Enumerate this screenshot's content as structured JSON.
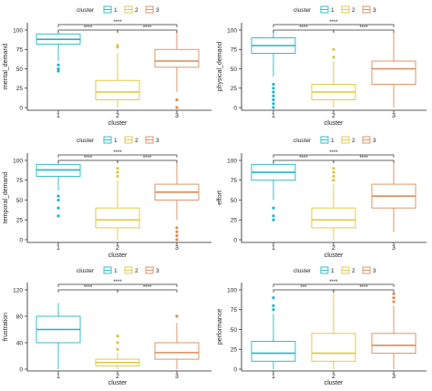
{
  "palette": {
    "c1": "#22b5c4",
    "c2": "#e0c53a",
    "c3": "#d98b5a"
  },
  "chart_data": [
    {
      "type": "box",
      "ylabel": "mental_demand",
      "xlabel": "cluster",
      "categories": [
        "1",
        "2",
        "3"
      ],
      "ylim": [
        0,
        100
      ],
      "yticks": [
        0,
        25,
        50,
        75,
        100
      ],
      "legend": {
        "title": "cluster",
        "entries": [
          "1",
          "2",
          "3"
        ],
        "position": "top"
      },
      "boxes": [
        {
          "min": 60,
          "q1": 82,
          "median": 88,
          "q3": 95,
          "max": 100,
          "outliers": [
            55,
            50,
            47
          ]
        },
        {
          "min": 0,
          "q1": 10,
          "median": 20,
          "q3": 35,
          "max": 70,
          "outliers": [
            80,
            78
          ]
        },
        {
          "min": 20,
          "q1": 52,
          "median": 60,
          "q3": 75,
          "max": 100,
          "outliers": [
            10,
            0
          ]
        }
      ],
      "brackets": [
        {
          "from": 1,
          "to": 2,
          "label": "****"
        },
        {
          "from": 2,
          "to": 3,
          "label": "****"
        },
        {
          "from": 1,
          "to": 3,
          "label": "****"
        }
      ]
    },
    {
      "type": "box",
      "ylabel": "physical_demand",
      "xlabel": "cluster",
      "categories": [
        "1",
        "2",
        "3"
      ],
      "ylim": [
        0,
        100
      ],
      "yticks": [
        0,
        25,
        50,
        75,
        100
      ],
      "legend": {
        "title": "cluster",
        "entries": [
          "1",
          "2",
          "3"
        ],
        "position": "top"
      },
      "boxes": [
        {
          "min": 40,
          "q1": 70,
          "median": 80,
          "q3": 90,
          "max": 100,
          "outliers": [
            30,
            25,
            20,
            15,
            10,
            5,
            0
          ]
        },
        {
          "min": 0,
          "q1": 10,
          "median": 20,
          "q3": 30,
          "max": 60,
          "outliers": [
            65,
            75
          ]
        },
        {
          "min": 0,
          "q1": 30,
          "median": 50,
          "q3": 60,
          "max": 100,
          "outliers": []
        }
      ],
      "brackets": [
        {
          "from": 1,
          "to": 2,
          "label": "****"
        },
        {
          "from": 2,
          "to": 3,
          "label": "****"
        },
        {
          "from": 1,
          "to": 3,
          "label": "****"
        }
      ]
    },
    {
      "type": "box",
      "ylabel": "temporal_demand",
      "xlabel": "cluster",
      "categories": [
        "1",
        "2",
        "3"
      ],
      "ylim": [
        0,
        100
      ],
      "yticks": [
        0,
        25,
        50,
        75,
        100
      ],
      "legend": {
        "title": "cluster",
        "entries": [
          "1",
          "2",
          "3"
        ],
        "position": "top"
      },
      "boxes": [
        {
          "min": 62,
          "q1": 80,
          "median": 88,
          "q3": 95,
          "max": 100,
          "outliers": [
            55,
            50,
            40,
            30
          ]
        },
        {
          "min": 0,
          "q1": 15,
          "median": 25,
          "q3": 40,
          "max": 75,
          "outliers": [
            80,
            85,
            90
          ]
        },
        {
          "min": 25,
          "q1": 50,
          "median": 60,
          "q3": 70,
          "max": 100,
          "outliers": [
            15,
            10,
            5,
            0
          ]
        }
      ],
      "brackets": [
        {
          "from": 1,
          "to": 2,
          "label": "****"
        },
        {
          "from": 2,
          "to": 3,
          "label": "****"
        },
        {
          "from": 1,
          "to": 3,
          "label": "****"
        }
      ]
    },
    {
      "type": "box",
      "ylabel": "effort",
      "xlabel": "cluster",
      "categories": [
        "1",
        "2",
        "3"
      ],
      "ylim": [
        0,
        100
      ],
      "yticks": [
        0,
        25,
        50,
        75,
        100
      ],
      "legend": {
        "title": "cluster",
        "entries": [
          "1",
          "2",
          "3"
        ],
        "position": "top"
      },
      "boxes": [
        {
          "min": 50,
          "q1": 75,
          "median": 85,
          "q3": 95,
          "max": 100,
          "outliers": [
            40,
            30,
            25
          ]
        },
        {
          "min": 0,
          "q1": 15,
          "median": 25,
          "q3": 40,
          "max": 70,
          "outliers": [
            75,
            80,
            85,
            90
          ]
        },
        {
          "min": 10,
          "q1": 40,
          "median": 55,
          "q3": 70,
          "max": 100,
          "outliers": []
        }
      ],
      "brackets": [
        {
          "from": 1,
          "to": 2,
          "label": "****"
        },
        {
          "from": 2,
          "to": 3,
          "label": "****"
        },
        {
          "from": 1,
          "to": 3,
          "label": "****"
        }
      ]
    },
    {
      "type": "box",
      "ylabel": "frustration",
      "xlabel": "cluster",
      "categories": [
        "1",
        "2",
        "3"
      ],
      "ylim": [
        0,
        120
      ],
      "yticks": [
        0,
        40,
        80,
        120
      ],
      "legend": {
        "title": "cluster",
        "entries": [
          "1",
          "2",
          "3"
        ],
        "position": "top"
      },
      "boxes": [
        {
          "min": 0,
          "q1": 40,
          "median": 60,
          "q3": 80,
          "max": 100,
          "outliers": []
        },
        {
          "min": 0,
          "q1": 5,
          "median": 10,
          "q3": 15,
          "max": 25,
          "outliers": [
            30,
            40,
            50
          ]
        },
        {
          "min": 0,
          "q1": 15,
          "median": 25,
          "q3": 40,
          "max": 70,
          "outliers": [
            80
          ]
        }
      ],
      "brackets": [
        {
          "from": 1,
          "to": 2,
          "label": "****"
        },
        {
          "from": 2,
          "to": 3,
          "label": "****"
        },
        {
          "from": 1,
          "to": 3,
          "label": "****"
        }
      ]
    },
    {
      "type": "box",
      "ylabel": "performance",
      "xlabel": "cluster",
      "categories": [
        "1",
        "2",
        "3"
      ],
      "ylim": [
        0,
        100
      ],
      "yticks": [
        0,
        25,
        50,
        75,
        100
      ],
      "legend": {
        "title": "cluster",
        "entries": [
          "1",
          "2",
          "3"
        ],
        "position": "top"
      },
      "boxes": [
        {
          "min": 0,
          "q1": 10,
          "median": 20,
          "q3": 35,
          "max": 70,
          "outliers": [
            75,
            80,
            90
          ]
        },
        {
          "min": 0,
          "q1": 10,
          "median": 20,
          "q3": 45,
          "max": 100,
          "outliers": []
        },
        {
          "min": 0,
          "q1": 20,
          "median": 30,
          "q3": 45,
          "max": 80,
          "outliers": [
            85,
            90,
            95
          ]
        }
      ],
      "brackets": [
        {
          "from": 1,
          "to": 2,
          "label": "***"
        },
        {
          "from": 2,
          "to": 3,
          "label": "****"
        },
        {
          "from": 1,
          "to": 3,
          "label": "****"
        }
      ]
    }
  ]
}
